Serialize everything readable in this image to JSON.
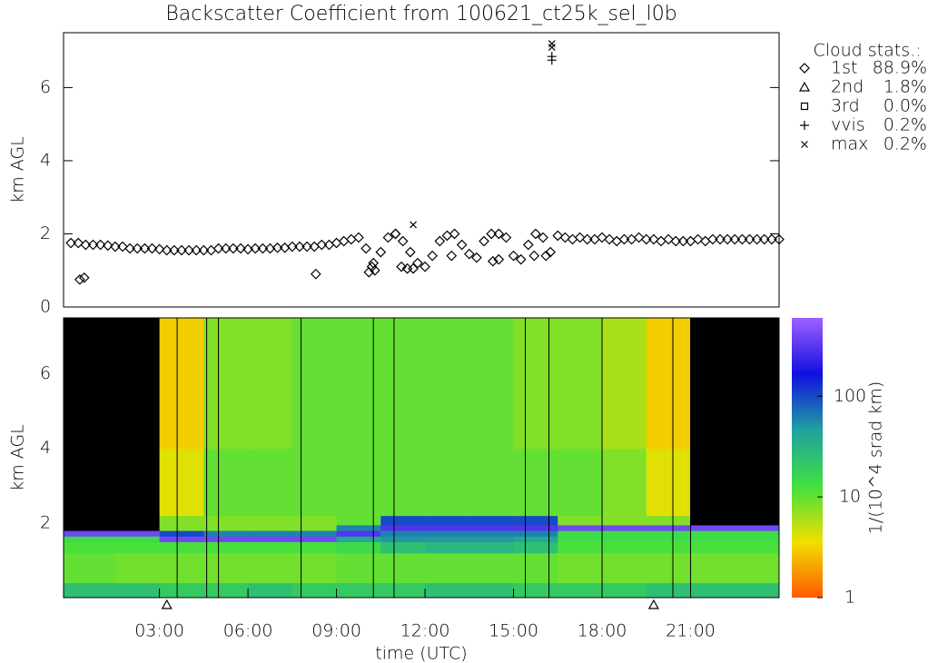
{
  "title": "Backscatter Coefficient from 100621_ct25k_sel_l0b",
  "legend_title": "Cloud stats.:",
  "chart_data": [
    {
      "type": "scatter",
      "ylabel": "km AGL",
      "xlim": [
        -0.25,
        24
      ],
      "ylim": [
        0,
        7.5
      ],
      "yticks": [
        0,
        2,
        4,
        6
      ],
      "series": [
        {
          "name": "1st",
          "marker": "diamond",
          "stat": 88.9,
          "stat_label": "88.9%",
          "x": [
            0,
            0.25,
            0.5,
            0.75,
            1,
            1.25,
            1.5,
            1.75,
            2,
            2.25,
            2.5,
            2.75,
            3,
            3.25,
            3.5,
            3.75,
            4,
            4.25,
            4.5,
            4.75,
            5,
            5.25,
            5.5,
            5.75,
            6,
            6.25,
            6.5,
            6.75,
            7,
            7.25,
            7.5,
            7.75,
            8,
            8.25,
            8.5,
            8.75,
            9,
            9.25,
            9.5,
            9.75,
            10,
            10.25,
            10.5,
            10.75,
            11,
            11.25,
            11.5,
            11.75,
            12,
            12.25,
            12.5,
            12.75,
            13,
            13.25,
            13.5,
            13.75,
            14,
            14.25,
            14.5,
            14.75,
            15,
            15.25,
            15.5,
            15.75,
            16,
            16.25,
            16.5,
            16.75,
            17,
            17.25,
            17.5,
            17.75,
            18,
            18.25,
            18.5,
            18.75,
            19,
            19.25,
            19.5,
            19.75,
            20,
            20.25,
            20.5,
            20.75,
            21,
            21.25,
            21.5,
            21.75,
            22,
            22.25,
            22.5,
            22.75,
            23,
            23.25,
            23.5,
            23.75,
            24,
            0.3,
            0.45,
            8.3,
            10.1,
            10.3,
            10.2,
            11.2,
            11.4,
            11.6,
            12.9,
            14.3,
            14.5,
            15.7,
            16.1,
            11.0
          ],
          "values": [
            1.75,
            1.75,
            1.7,
            1.7,
            1.7,
            1.68,
            1.65,
            1.65,
            1.6,
            1.6,
            1.6,
            1.6,
            1.58,
            1.55,
            1.55,
            1.55,
            1.55,
            1.55,
            1.55,
            1.55,
            1.6,
            1.6,
            1.6,
            1.6,
            1.58,
            1.6,
            1.6,
            1.6,
            1.62,
            1.62,
            1.65,
            1.65,
            1.65,
            1.65,
            1.7,
            1.7,
            1.75,
            1.8,
            1.85,
            1.9,
            1.6,
            1.2,
            1.5,
            1.9,
            2.0,
            1.8,
            1.5,
            1.2,
            1.1,
            1.4,
            1.8,
            1.95,
            2.0,
            1.7,
            1.45,
            1.35,
            1.8,
            2.0,
            2.0,
            1.9,
            1.4,
            1.3,
            1.7,
            2.0,
            1.9,
            1.5,
            1.95,
            1.9,
            1.85,
            1.9,
            1.85,
            1.85,
            1.9,
            1.85,
            1.8,
            1.85,
            1.85,
            1.9,
            1.85,
            1.85,
            1.8,
            1.85,
            1.8,
            1.8,
            1.8,
            1.85,
            1.8,
            1.85,
            1.85,
            1.85,
            1.85,
            1.85,
            1.85,
            1.85,
            1.85,
            1.85,
            1.85,
            0.75,
            0.8,
            0.9,
            0.95,
            1.0,
            1.1,
            1.1,
            1.05,
            1.05,
            1.4,
            1.25,
            1.3,
            1.4,
            1.4,
            2.0
          ]
        },
        {
          "name": "2nd",
          "marker": "triangle",
          "stat": 1.8,
          "stat_label": "1.8%",
          "x": [],
          "values": []
        },
        {
          "name": "3rd",
          "marker": "square",
          "stat": 0.0,
          "stat_label": "0.0%",
          "x": [],
          "values": []
        },
        {
          "name": "vvis",
          "marker": "plus",
          "stat": 0.2,
          "stat_label": "0.2%",
          "x": [
            16.3,
            16.3
          ],
          "values": [
            6.75,
            6.85
          ]
        },
        {
          "name": "max",
          "marker": "cross",
          "stat": 0.2,
          "stat_label": "0.2%",
          "x": [
            16.3,
            16.3,
            11.6
          ],
          "values": [
            7.2,
            7.1,
            2.25
          ]
        }
      ]
    },
    {
      "type": "heatmap",
      "ylabel": "km AGL",
      "xlabel": "time (UTC)",
      "xlim": [
        -0.25,
        24
      ],
      "ylim": [
        0,
        7.5
      ],
      "yticks": [
        2,
        4,
        6
      ],
      "xticks": [
        {
          "value": 3,
          "label": "03:00"
        },
        {
          "value": 6,
          "label": "06:00"
        },
        {
          "value": 9,
          "label": "09:00"
        },
        {
          "value": 12,
          "label": "12:00"
        },
        {
          "value": 15,
          "label": "15:00"
        },
        {
          "value": 18,
          "label": "18:00"
        },
        {
          "value": 21,
          "label": "21:00"
        }
      ],
      "x_edges": [
        -0.25,
        1.5,
        3,
        4.5,
        6,
        7.5,
        9,
        10.5,
        12,
        13.5,
        15,
        16.5,
        18,
        19.5,
        21,
        22.5,
        24
      ],
      "y_edges": [
        0,
        0.4,
        1.2,
        1.5,
        1.65,
        1.8,
        1.95,
        2.2,
        4,
        7.5
      ],
      "values": [
        [
          25,
          25,
          20,
          20,
          25,
          20,
          20,
          20,
          25,
          25,
          20,
          20,
          20,
          25,
          25,
          25
        ],
        [
          10,
          9,
          9,
          9,
          9,
          9,
          10,
          10,
          10,
          10,
          10,
          9,
          9,
          9,
          9,
          9
        ],
        [
          12,
          12,
          12,
          12,
          12,
          12,
          15,
          25,
          30,
          30,
          25,
          12,
          12,
          12,
          12,
          12
        ],
        [
          14,
          14,
          400,
          400,
          400,
          400,
          40,
          50,
          50,
          50,
          40,
          14,
          14,
          14,
          14,
          14
        ],
        [
          400,
          400,
          100,
          60,
          60,
          60,
          300,
          60,
          60,
          60,
          60,
          14,
          14,
          14,
          14,
          14
        ],
        [
          null,
          null,
          8,
          8,
          8,
          8,
          60,
          300,
          300,
          300,
          300,
          400,
          400,
          400,
          400,
          400
        ],
        [
          null,
          null,
          8,
          8,
          8,
          8,
          10,
          100,
          100,
          100,
          100,
          8,
          8,
          8,
          null,
          null
        ],
        [
          null,
          null,
          4,
          10,
          10,
          10,
          10,
          10,
          10,
          10,
          10,
          10,
          8,
          4,
          null,
          null
        ],
        [
          null,
          null,
          3,
          8,
          8,
          10,
          10,
          10,
          10,
          10,
          8,
          8,
          6,
          3,
          null,
          null
        ]
      ],
      "gap_lines": [
        3.6,
        4.6,
        5.0,
        7.8,
        10.25,
        10.95,
        15.4,
        16.2,
        18.0,
        20.4,
        21.0
      ],
      "x_markers": [
        3.25,
        19.75
      ],
      "colorbar_label": "1/(10^4 srad km)",
      "clim": [
        1,
        600
      ],
      "cticks": [
        1,
        10,
        100
      ],
      "log_color": true,
      "colormap": [
        "#ff5a00",
        "#f0e000",
        "#40e040",
        "#20a0a0",
        "#1010e0",
        "#a060ff"
      ],
      "null_color": "#000000"
    }
  ]
}
